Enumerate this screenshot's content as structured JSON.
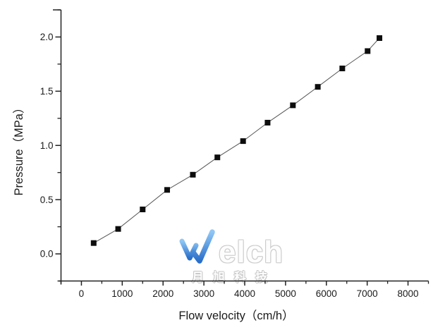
{
  "chart_data": {
    "type": "line",
    "title": "",
    "xlabel": "Flow velocity（cm/h）",
    "ylabel": "Pressure（MPa）",
    "x": [
      300,
      900,
      1500,
      2100,
      2730,
      3330,
      3960,
      4560,
      5180,
      5790,
      6390,
      7010,
      7300
    ],
    "y": [
      0.1,
      0.23,
      0.41,
      0.59,
      0.73,
      0.89,
      1.04,
      1.21,
      1.37,
      1.54,
      1.71,
      1.87,
      1.99
    ],
    "xlim": [
      -500,
      8500
    ],
    "ylim": [
      -0.25,
      2.25
    ],
    "x_ticks": [
      0,
      1000,
      2000,
      3000,
      4000,
      5000,
      6000,
      7000,
      8000
    ],
    "y_ticks": [
      0.0,
      0.5,
      1.0,
      1.5,
      2.0
    ],
    "x_minor_step": 500,
    "y_minor_step": 0.25,
    "grid": false,
    "legend_position": "none",
    "marker": "filled-square",
    "line_color": "#555555",
    "marker_color": "#0d0d0d",
    "axis_color": "#222222",
    "tick_label_color": "#1a1a1a"
  },
  "watermark": {
    "brand_w_icon": "welch-logo-w",
    "brand_rest": "elch",
    "subtext": "月旭科技",
    "w_color_top": "#8ec6f5",
    "w_color_bottom": "#2a6fc9"
  }
}
